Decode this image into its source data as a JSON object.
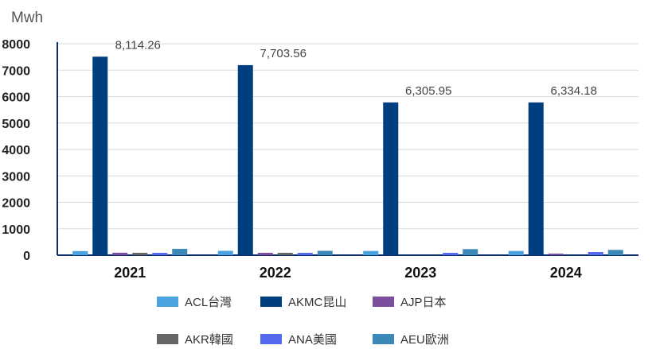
{
  "chart_data": {
    "type": "bar",
    "unit_label": "Mwh",
    "categories": [
      "2021",
      "2022",
      "2023",
      "2024"
    ],
    "ylim": [
      0,
      8000
    ],
    "yticks": [
      0,
      1000,
      2000,
      3000,
      4000,
      5000,
      6000,
      7000,
      8000
    ],
    "grid": true,
    "legend_position": "bottom",
    "series": [
      {
        "name": "ACL台灣",
        "color": "#4aa3df",
        "values": [
          155,
          165,
          160,
          160
        ]
      },
      {
        "name": "AKMC昆山",
        "color": "#003f7f",
        "values": [
          7510,
          7190,
          5780,
          5780
        ]
      },
      {
        "name": "AJP日本",
        "color": "#7b4f9e",
        "values": [
          95,
          90,
          0,
          60
        ]
      },
      {
        "name": "AKR韓國",
        "color": "#666666",
        "values": [
          90,
          90,
          0,
          0
        ]
      },
      {
        "name": "ANA美國",
        "color": "#5569ee",
        "values": [
          90,
          90,
          90,
          120
        ]
      },
      {
        "name": "AEU歐洲",
        "color": "#3a89b8",
        "values": [
          240,
          165,
          230,
          200
        ]
      }
    ],
    "total_labels": [
      "8,114.26",
      "7,703.56",
      "6,305.95",
      "6,334.18"
    ]
  }
}
